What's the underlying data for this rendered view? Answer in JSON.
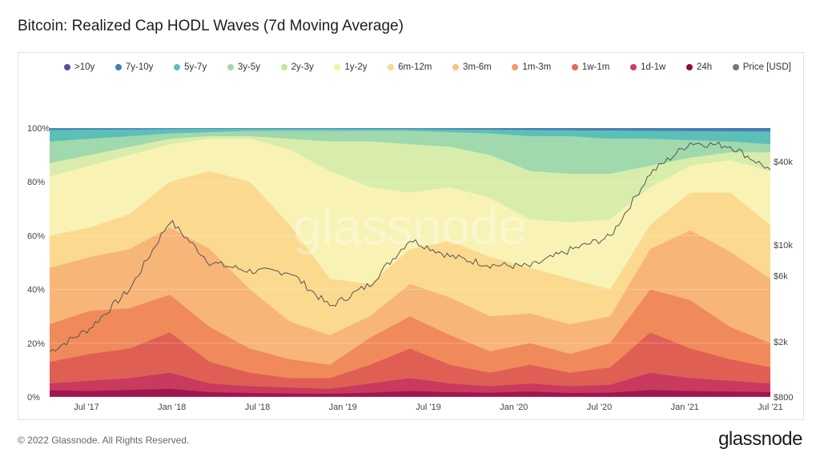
{
  "header": {
    "title": "Bitcoin: Realized Cap HODL Waves (7d Moving Average)"
  },
  "footer": {
    "copyright": "© 2022 Glassnode. All Rights Reserved.",
    "brand": "glassnode"
  },
  "watermark": "glassnode",
  "chart_data": {
    "type": "area",
    "title": "Bitcoin: Realized Cap HODL Waves (7d Moving Average)",
    "stacked": true,
    "x": [
      "2017-05",
      "2017-07",
      "2017-10",
      "2018-01",
      "2018-04",
      "2018-07",
      "2018-10",
      "2019-01",
      "2019-04",
      "2019-07",
      "2019-10",
      "2020-01",
      "2020-04",
      "2020-07",
      "2020-10",
      "2021-01",
      "2021-03",
      "2021-05",
      "2021-07"
    ],
    "x_tick_labels": [
      "Jul '17",
      "Jan '18",
      "Jul '18",
      "Jan '19",
      "Jul '19",
      "Jan '20",
      "Jul '20",
      "Jan '21",
      "Jul '21"
    ],
    "y_left": {
      "label": "",
      "range": [
        0,
        100
      ],
      "unit": "%",
      "ticks": [
        "0%",
        "20%",
        "40%",
        "60%",
        "80%",
        "100%"
      ]
    },
    "y_right": {
      "label": "Price [USD]",
      "scale": "log",
      "range": [
        800,
        70000
      ],
      "ticks": [
        "$800",
        "$2k",
        "$6k",
        "$10k",
        "$40k"
      ]
    },
    "series": [
      {
        "name": "24h",
        "color": "#a0164e",
        "values": [
          2.5,
          2.2,
          2.6,
          3.0,
          1.8,
          1.5,
          1.3,
          1.2,
          1.6,
          2.2,
          1.8,
          1.6,
          2.0,
          1.5,
          1.6,
          2.6,
          2.2,
          2.0,
          1.8
        ]
      },
      {
        "name": "1d-1w",
        "color": "#c83a5e",
        "values": [
          5,
          6,
          7,
          9,
          5,
          4,
          3.5,
          3,
          5,
          7,
          5,
          4,
          5,
          4,
          4.5,
          9,
          7,
          6,
          5
        ]
      },
      {
        "name": "1w-1m",
        "color": "#e05f55",
        "values": [
          13,
          16,
          18,
          24,
          13,
          9,
          7,
          7,
          12,
          18,
          12,
          9,
          12,
          9,
          11,
          24,
          18,
          14,
          11
        ]
      },
      {
        "name": "1m-3m",
        "color": "#f08a5b",
        "values": [
          27,
          32,
          33,
          38,
          26,
          18,
          14,
          12,
          22,
          30,
          23,
          17,
          20,
          16,
          20,
          40,
          36,
          26,
          20
        ]
      },
      {
        "name": "3m-6m",
        "color": "#f8b578",
        "values": [
          48,
          52,
          55,
          63,
          55,
          40,
          28,
          23,
          30,
          42,
          37,
          30,
          31,
          27,
          30,
          55,
          62,
          54,
          44
        ]
      },
      {
        "name": "6m-12m",
        "color": "#fbd98f",
        "values": [
          60,
          63,
          68,
          80,
          84,
          80,
          64,
          44,
          42,
          55,
          58,
          52,
          48,
          44,
          40,
          64,
          76,
          76,
          64
        ]
      },
      {
        "name": "1y-2y",
        "color": "#f8f3b4",
        "values": [
          82,
          86,
          90,
          94,
          96,
          96,
          92,
          84,
          78,
          76,
          78,
          74,
          66,
          65,
          66,
          78,
          86,
          88,
          84
        ]
      },
      {
        "name": "2y-3y",
        "color": "#d8edac",
        "values": [
          87,
          90,
          93,
          96,
          97,
          97,
          96,
          95,
          95,
          94,
          93,
          90,
          84,
          83,
          83,
          86,
          89,
          91,
          91
        ]
      },
      {
        "name": "3y-5y",
        "color": "#9fd9ad",
        "values": [
          95,
          96,
          97,
          98,
          98.5,
          99,
          99,
          99,
          99,
          99,
          98.5,
          98,
          97,
          97,
          96,
          96,
          95.5,
          95,
          94
        ]
      },
      {
        "name": "5y-7y",
        "color": "#5cbfb8",
        "values": [
          99.3,
          99.4,
          99.5,
          99.6,
          99.7,
          99.7,
          99.7,
          99.7,
          99.6,
          99.6,
          99.5,
          99.4,
          99.3,
          99.2,
          99.1,
          99.0,
          98.9,
          98.8,
          98.7
        ]
      },
      {
        "name": "7y-10y",
        "color": "#3c82b8",
        "values": [
          99.9,
          99.9,
          99.9,
          99.9,
          99.95,
          99.95,
          99.95,
          99.95,
          99.9,
          99.9,
          99.9,
          99.85,
          99.8,
          99.8,
          99.8,
          99.8,
          99.75,
          99.7,
          99.7
        ]
      },
      {
        "name": ">10y",
        "color": "#5a4d9c",
        "values": [
          100,
          100,
          100,
          100,
          100,
          100,
          100,
          100,
          100,
          100,
          100,
          100,
          100,
          100,
          100,
          100,
          100,
          100,
          100
        ]
      }
    ],
    "price": {
      "name": "Price [USD]",
      "color": "#555555",
      "values": [
        1700,
        2500,
        4800,
        15000,
        7500,
        6500,
        6400,
        3600,
        5200,
        11000,
        8300,
        7200,
        7000,
        9200,
        11500,
        33000,
        55000,
        52000,
        35000
      ]
    },
    "legend": [
      {
        "label": ">10y",
        "color": "#5a4d9c"
      },
      {
        "label": "7y-10y",
        "color": "#3c82b8"
      },
      {
        "label": "5y-7y",
        "color": "#5cbfb8"
      },
      {
        "label": "3y-5y",
        "color": "#9fd9ad"
      },
      {
        "label": "2y-3y",
        "color": "#c6e79a"
      },
      {
        "label": "1y-2y",
        "color": "#f6f0a8"
      },
      {
        "label": "6m-12m",
        "color": "#fbd98f"
      },
      {
        "label": "3m-6m",
        "color": "#f8c27f"
      },
      {
        "label": "1m-3m",
        "color": "#f29b63"
      },
      {
        "label": "1w-1m",
        "color": "#e46a55"
      },
      {
        "label": "1d-1w",
        "color": "#cc3f5e"
      },
      {
        "label": "24h",
        "color": "#8e0f3e"
      },
      {
        "label": "Price [USD]",
        "color": "#777777"
      }
    ]
  }
}
